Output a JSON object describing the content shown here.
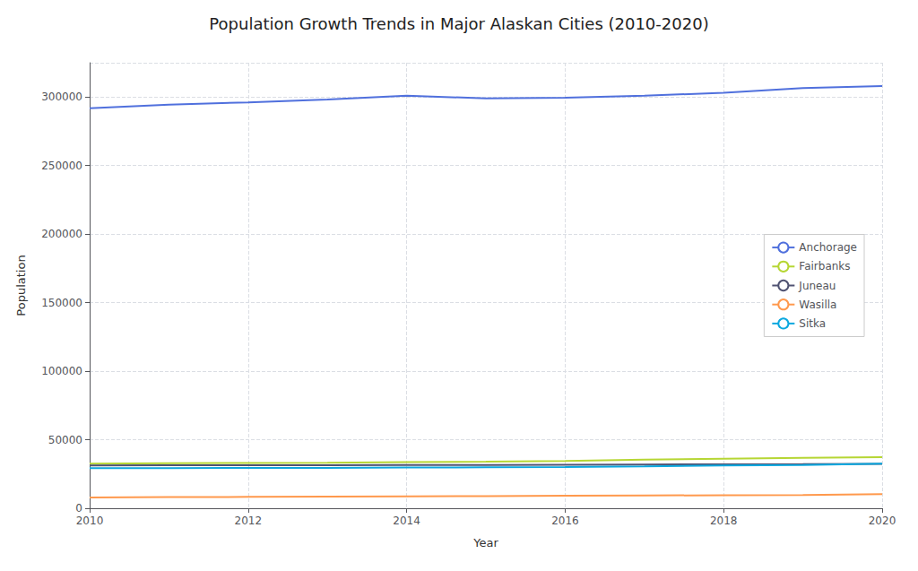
{
  "chart_data": {
    "type": "line",
    "title": "Population Growth Trends in Major Alaskan Cities (2010-2020)",
    "xlabel": "Year",
    "ylabel": "Population",
    "x": [
      2010,
      2011,
      2012,
      2013,
      2014,
      2015,
      2016,
      2017,
      2018,
      2019,
      2020
    ],
    "series": [
      {
        "name": "Anchorage",
        "values": [
          291826,
          294356,
          296112,
          298192,
          300950,
          299037,
          299535,
          301010,
          303076,
          306561,
          308050
        ]
      },
      {
        "name": "Fairbanks",
        "values": [
          32505,
          32900,
          33000,
          33200,
          33600,
          34000,
          34500,
          35500,
          36100,
          36800,
          37200
        ]
      },
      {
        "name": "Juneau",
        "values": [
          31276,
          31350,
          31400,
          31450,
          31500,
          31600,
          31700,
          31900,
          32100,
          32200,
          32386
        ]
      },
      {
        "name": "Wasilla",
        "values": [
          7831,
          8100,
          8300,
          8500,
          8700,
          8900,
          9100,
          9300,
          9500,
          9700,
          10258
        ]
      },
      {
        "name": "Sitka",
        "values": [
          29193,
          29300,
          29400,
          29500,
          29700,
          29900,
          30100,
          30500,
          31200,
          31500,
          32468
        ]
      }
    ],
    "xlim": [
      2010,
      2020
    ],
    "ylim": [
      0,
      325000
    ],
    "xticks": [
      2010,
      2012,
      2014,
      2016,
      2018,
      2020
    ],
    "yticks": [
      0,
      50000,
      100000,
      150000,
      200000,
      250000,
      300000
    ],
    "grid": true,
    "legend": "right"
  }
}
